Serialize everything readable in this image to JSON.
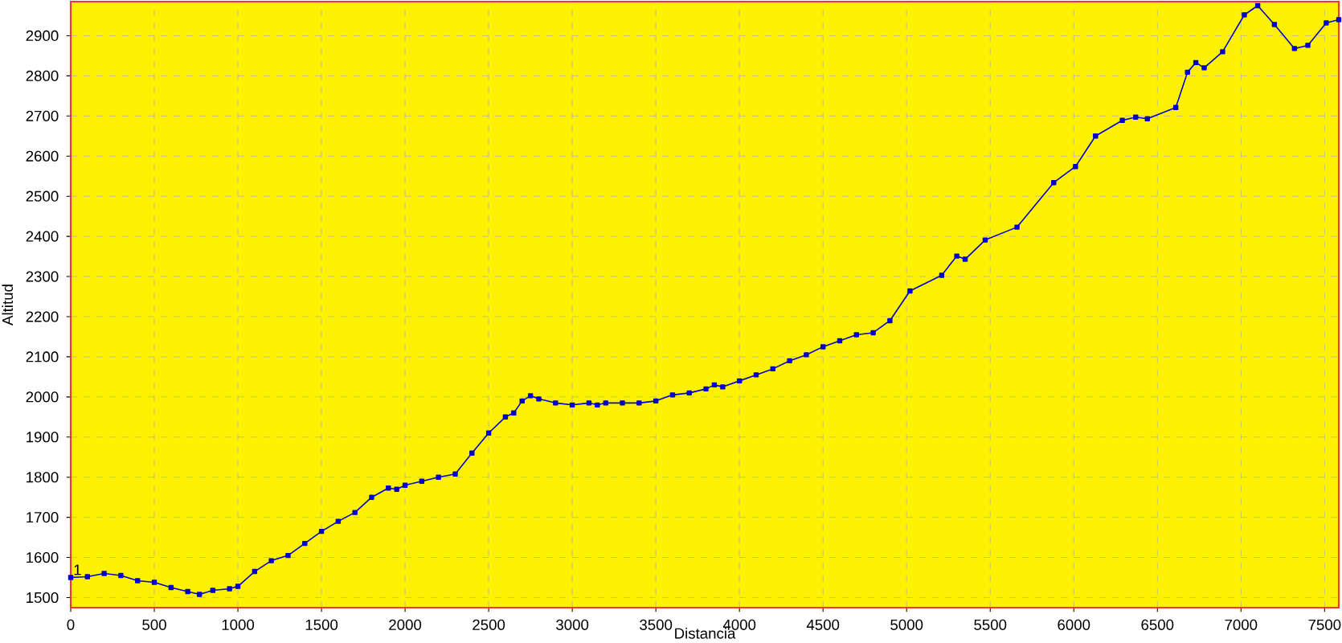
{
  "chart_data": {
    "type": "line",
    "xlabel": "Distancia",
    "ylabel": "Altitud",
    "x": [
      0,
      100,
      200,
      300,
      400,
      500,
      600,
      700,
      770,
      850,
      950,
      1000,
      1100,
      1200,
      1300,
      1400,
      1500,
      1600,
      1700,
      1800,
      1900,
      1950,
      2000,
      2100,
      2200,
      2300,
      2400,
      2500,
      2600,
      2650,
      2700,
      2750,
      2800,
      2900,
      3000,
      3100,
      3150,
      3200,
      3300,
      3400,
      3500,
      3600,
      3700,
      3800,
      3850,
      3900,
      4000,
      4100,
      4200,
      4300,
      4400,
      4500,
      4600,
      4700,
      4800,
      4900,
      5020,
      5210,
      5300,
      5350,
      5470,
      5660,
      5880,
      6010,
      6130,
      6290,
      6370,
      6440,
      6610,
      6680,
      6730,
      6780,
      6890,
      7020,
      7100,
      7200,
      7320,
      7400,
      7510,
      7585
    ],
    "series": [
      {
        "color": "#0000cc",
        "values": [
          1550,
          1552,
          1560,
          1555,
          1542,
          1538,
          1525,
          1515,
          1508,
          1518,
          1522,
          1528,
          1565,
          1592,
          1605,
          1635,
          1665,
          1690,
          1712,
          1750,
          1773,
          1770,
          1780,
          1790,
          1800,
          1808,
          1860,
          1910,
          1950,
          1960,
          1990,
          2003,
          1995,
          1985,
          1980,
          1985,
          1980,
          1985,
          1985,
          1985,
          1990,
          2005,
          2010,
          2020,
          2030,
          2025,
          2040,
          2055,
          2070,
          2090,
          2105,
          2125,
          2140,
          2155,
          2160,
          2190,
          2264,
          2303,
          2351,
          2343,
          2391,
          2423,
          2534,
          2574,
          2650,
          2689,
          2697,
          2693,
          2721,
          2809,
          2833,
          2820,
          2860,
          2952,
          2975,
          2928,
          2868,
          2876,
          2932,
          2940
        ]
      }
    ],
    "xlim": [
      0,
      7585
    ],
    "ylim": [
      1475,
      2985
    ],
    "xticks": [
      0,
      500,
      1000,
      1500,
      2000,
      2500,
      3000,
      3500,
      4000,
      4500,
      5000,
      5500,
      6000,
      6500,
      7000,
      7500
    ],
    "yticks": [
      1500,
      1600,
      1700,
      1800,
      1900,
      2000,
      2100,
      2200,
      2300,
      2400,
      2500,
      2600,
      2700,
      2800,
      2900
    ],
    "annotations": [
      {
        "text": "1",
        "x": 0,
        "y": 1550
      }
    ],
    "grid": true,
    "marker": "square",
    "line_style": "solid"
  }
}
